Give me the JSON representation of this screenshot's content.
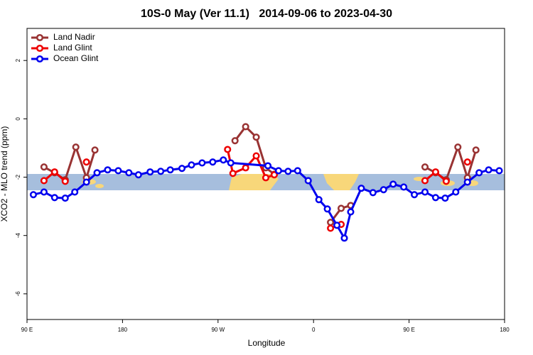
{
  "chart_data": {
    "type": "line",
    "title": "10S-0 May (Ver 11.1)   2014-09-06 to 2023-04-30",
    "xlabel": "Longitude",
    "ylabel": "XCO2 - MLO trend (ppm)",
    "xlim": [
      90,
      540
    ],
    "xticks": [
      {
        "value": 90,
        "label": "90 E"
      },
      {
        "value": 180,
        "label": "180"
      },
      {
        "value": 270,
        "label": "90 W"
      },
      {
        "value": 360,
        "label": "0"
      },
      {
        "value": 450,
        "label": "90 E"
      },
      {
        "value": 540,
        "label": "180"
      }
    ],
    "ylim": [
      -6.88,
      3.1
    ],
    "yticks": [
      -6,
      -4,
      -2,
      0,
      2
    ],
    "legend": "top-left",
    "series": [
      {
        "name": "Land Nadir",
        "color": "#993333",
        "x": [
          106,
          116,
          126,
          136,
          146,
          154,
          null,
          286,
          296,
          306,
          315,
          323,
          null,
          376,
          386,
          395,
          null,
          465,
          475,
          485,
          496,
          505,
          513
        ],
        "values": [
          -1.65,
          -1.85,
          -2.09,
          -0.97,
          -2.02,
          -1.07,
          null,
          -0.75,
          -0.27,
          -0.63,
          -1.68,
          -1.9,
          null,
          -3.55,
          -3.07,
          -2.97,
          null,
          -1.65,
          -1.85,
          -2.09,
          -0.97,
          -2.02,
          -1.07
        ]
      },
      {
        "name": "Land Glint",
        "color": "#ee0000",
        "x": [
          106,
          116,
          126,
          null,
          146,
          null,
          279,
          284,
          296,
          306,
          315,
          323,
          null,
          376,
          386,
          null,
          465,
          475,
          485,
          null,
          505
        ],
        "values": [
          -2.12,
          -1.82,
          -2.14,
          null,
          -1.48,
          null,
          -1.05,
          -1.87,
          -1.68,
          -1.27,
          -2.02,
          -1.92,
          null,
          -3.75,
          -3.62,
          null,
          -2.12,
          -1.82,
          -2.14,
          null,
          -1.48
        ]
      },
      {
        "name": "Ocean Glint",
        "color": "#0000ee",
        "x": [
          96,
          106,
          116,
          126,
          135,
          146,
          156,
          166,
          176,
          186,
          195,
          206,
          216,
          225,
          236,
          245,
          255,
          265,
          275,
          282,
          317,
          327,
          336,
          345,
          355,
          365,
          373,
          382,
          389,
          395,
          405,
          416,
          426,
          435,
          445,
          455,
          465,
          475,
          484,
          494,
          505,
          516,
          525,
          535
        ],
        "values": [
          -2.6,
          -2.51,
          -2.7,
          -2.72,
          -2.51,
          -2.17,
          -1.85,
          -1.75,
          -1.78,
          -1.85,
          -1.92,
          -1.82,
          -1.8,
          -1.75,
          -1.7,
          -1.58,
          -1.51,
          -1.48,
          -1.41,
          -1.51,
          -1.61,
          -1.78,
          -1.8,
          -1.78,
          -2.12,
          -2.77,
          -3.09,
          -3.65,
          -4.09,
          -3.19,
          -2.38,
          -2.53,
          -2.43,
          -2.24,
          -2.34,
          -2.6,
          -2.51,
          -2.7,
          -2.72,
          -2.51,
          -2.17,
          -1.85,
          -1.75,
          -1.78
        ]
      }
    ]
  }
}
